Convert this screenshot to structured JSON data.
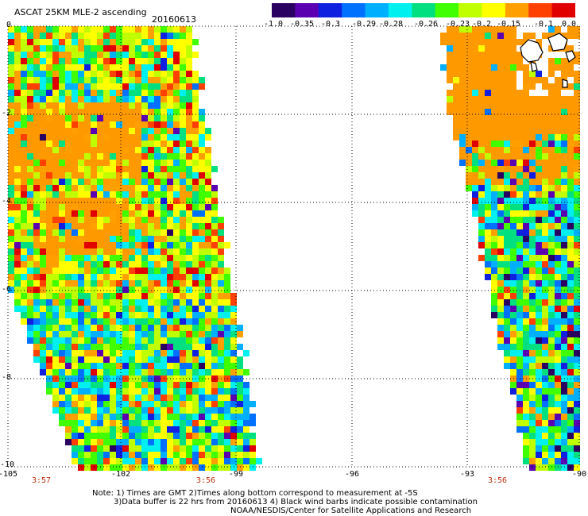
{
  "title": "ASCAT 25KM MLE-2 ascending",
  "date": "20160613",
  "colorbar": {
    "labels": [
      "-1.0",
      "-0.35",
      "-0.3",
      "-0.29",
      "-0.28",
      "-0.26",
      "-0.23",
      "-0.2",
      "-0.15",
      "-0.1",
      "0.0"
    ],
    "colors": [
      "#2a0060",
      "#5a00b0",
      "#1020e0",
      "#0070ff",
      "#00b0ff",
      "#00f0f0",
      "#00e080",
      "#40ff00",
      "#c0ff00",
      "#ffff00",
      "#ffa000",
      "#ff4000",
      "#e00000"
    ]
  },
  "axes": {
    "y_labels": [
      "0",
      "-2",
      "-4",
      "-6",
      "-8",
      "-10"
    ],
    "x_labels": [
      "-105",
      "-102",
      "-99",
      "-96",
      "-93",
      "-90"
    ],
    "time_labels": [
      "3:57",
      "3:56",
      "3:56"
    ]
  },
  "notes": {
    "line1": "Note: 1) Times are GMT 2)Times along bottom correspond to measurement at -5S",
    "line2": "3)Data buffer is 22 hrs from 20160613 4) Black wind barbs indicate possible contamination",
    "line3": "NOAA/NESDIS/Center for Satellite Applications and Research"
  },
  "colors": {
    "land_orange": "#ff9900",
    "time_red": "#c03010"
  }
}
